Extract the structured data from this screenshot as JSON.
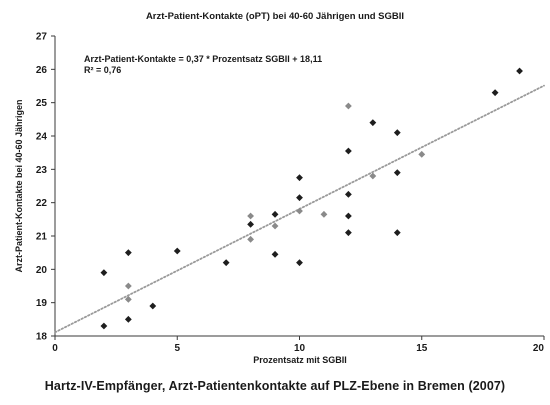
{
  "chart_data": {
    "type": "scatter",
    "title": "Arzt-Patient-Kontakte (oPT) bei 40-60 Jährigen und SGBII",
    "xlabel": "Prozentsatz mit SGBII",
    "ylabel": "Arzt-Patient-Kontakte bei 40-60 Jährigen",
    "xlim": [
      0,
      20
    ],
    "ylim": [
      18,
      27
    ],
    "x_ticks": [
      "0",
      "5",
      "10",
      "15",
      "20"
    ],
    "y_ticks": [
      "18",
      "19",
      "20",
      "21",
      "22",
      "23",
      "24",
      "25",
      "26",
      "27"
    ],
    "annotation_lines": [
      "Arzt-Patient-Kontakte = 0,37 * Prozentsatz SGBII + 18,11",
      "R² = 0,76"
    ],
    "trendline": {
      "slope": 0.37,
      "intercept": 18.11,
      "style": "dotted"
    },
    "grid": false,
    "colors": {
      "dark": "#1e1e1e",
      "light": "#8a8a8a",
      "trend": "#9a9a9a"
    },
    "points": [
      {
        "x": 2,
        "y": 19.9,
        "tone": "dark"
      },
      {
        "x": 2,
        "y": 18.3,
        "tone": "dark"
      },
      {
        "x": 3,
        "y": 20.5,
        "tone": "dark"
      },
      {
        "x": 3,
        "y": 19.5,
        "tone": "light"
      },
      {
        "x": 3,
        "y": 19.1,
        "tone": "light"
      },
      {
        "x": 3,
        "y": 18.5,
        "tone": "dark"
      },
      {
        "x": 4,
        "y": 18.9,
        "tone": "dark"
      },
      {
        "x": 5,
        "y": 20.55,
        "tone": "dark"
      },
      {
        "x": 7,
        "y": 20.2,
        "tone": "dark"
      },
      {
        "x": 8,
        "y": 21.6,
        "tone": "light"
      },
      {
        "x": 8,
        "y": 21.35,
        "tone": "dark"
      },
      {
        "x": 8,
        "y": 20.9,
        "tone": "light"
      },
      {
        "x": 9,
        "y": 21.65,
        "tone": "dark"
      },
      {
        "x": 9,
        "y": 21.3,
        "tone": "light"
      },
      {
        "x": 9,
        "y": 20.45,
        "tone": "dark"
      },
      {
        "x": 10,
        "y": 22.75,
        "tone": "dark"
      },
      {
        "x": 10,
        "y": 22.15,
        "tone": "dark"
      },
      {
        "x": 10,
        "y": 21.75,
        "tone": "light"
      },
      {
        "x": 10,
        "y": 20.2,
        "tone": "dark"
      },
      {
        "x": 11,
        "y": 21.65,
        "tone": "light"
      },
      {
        "x": 12,
        "y": 24.9,
        "tone": "light"
      },
      {
        "x": 12,
        "y": 23.55,
        "tone": "dark"
      },
      {
        "x": 12,
        "y": 22.25,
        "tone": "dark"
      },
      {
        "x": 12,
        "y": 21.6,
        "tone": "dark"
      },
      {
        "x": 12,
        "y": 21.1,
        "tone": "dark"
      },
      {
        "x": 13,
        "y": 24.4,
        "tone": "dark"
      },
      {
        "x": 13,
        "y": 22.8,
        "tone": "light"
      },
      {
        "x": 14,
        "y": 24.1,
        "tone": "dark"
      },
      {
        "x": 14,
        "y": 22.9,
        "tone": "dark"
      },
      {
        "x": 14,
        "y": 21.1,
        "tone": "dark"
      },
      {
        "x": 15,
        "y": 23.45,
        "tone": "light"
      },
      {
        "x": 18,
        "y": 25.3,
        "tone": "dark"
      },
      {
        "x": 19,
        "y": 25.95,
        "tone": "dark"
      }
    ]
  },
  "caption": "Hartz-IV-Empfänger, Arzt-Patientenkontakte auf PLZ-Ebene in Bremen (2007)"
}
